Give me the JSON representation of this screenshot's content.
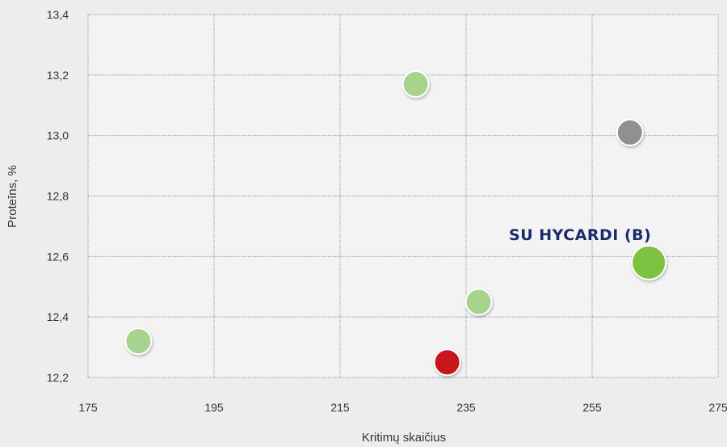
{
  "chart_data": {
    "type": "scatter",
    "title": "",
    "xlabel": "Kritimų skaičius",
    "ylabel": "Proteīns, %",
    "xlim": [
      175,
      275
    ],
    "ylim": [
      12.2,
      13.4
    ],
    "x_ticks": [
      "175",
      "195",
      "215",
      "235",
      "255",
      "275"
    ],
    "y_ticks": [
      "12,2",
      "12,4",
      "12,6",
      "12,8",
      "13,0",
      "13,2",
      "13,4"
    ],
    "grid": true,
    "points": [
      {
        "x": 183,
        "y": 12.32,
        "color": "#a6d38e"
      },
      {
        "x": 227,
        "y": 13.17,
        "color": "#a6d38e"
      },
      {
        "x": 237,
        "y": 12.45,
        "color": "#a6d38e"
      },
      {
        "x": 232,
        "y": 12.25,
        "color": "#c8151b"
      },
      {
        "x": 261,
        "y": 13.01,
        "color": "#8f9092"
      },
      {
        "x": 264,
        "y": 12.58,
        "color": "#7dc242",
        "label": "SU HYCARDI (B)"
      }
    ]
  }
}
